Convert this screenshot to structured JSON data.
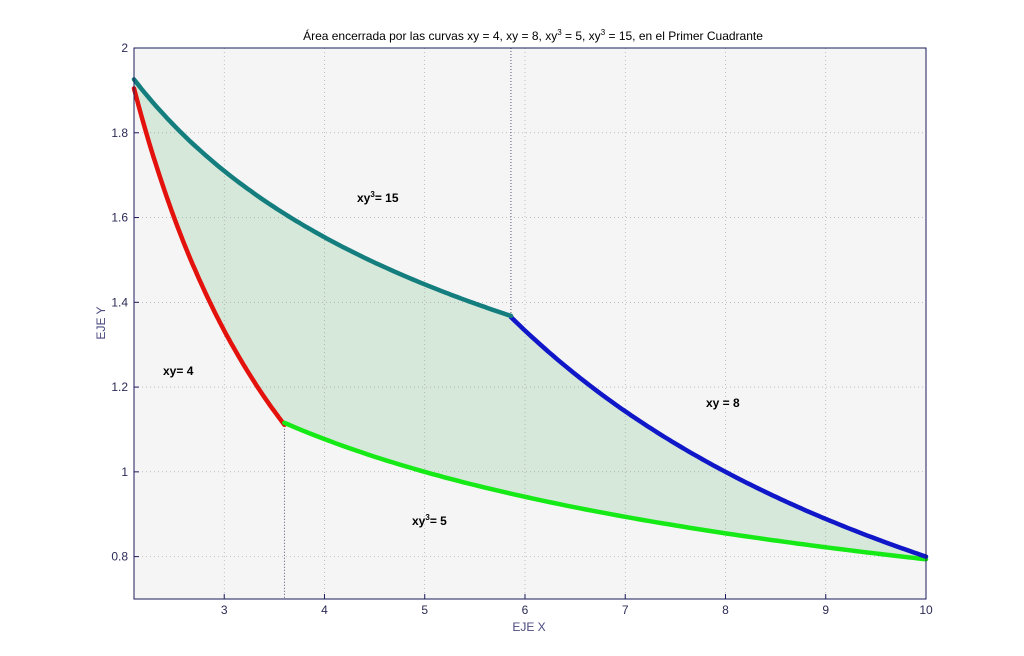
{
  "chart_data": {
    "type": "line",
    "title_parts": {
      "t1": "Área encerrada por las curvas xy = 4, xy = 8, xy",
      "sup1": "3",
      "t2": " = 5, xy",
      "sup2": "3",
      "t3": " = 15, en el Primer Cuadrante"
    },
    "xlabel": "EJE X",
    "ylabel": "EJE Y",
    "xlim": [
      2.1,
      10
    ],
    "ylim": [
      0.7,
      2
    ],
    "xticks": [
      3,
      4,
      5,
      6,
      7,
      8,
      9,
      10
    ],
    "yticks": [
      0.8,
      1,
      1.2,
      1.4,
      1.6,
      1.8,
      2
    ],
    "grid": true,
    "fill_color": "#d5e8d9",
    "series": [
      {
        "key": "xy4",
        "k": 4,
        "power": 1,
        "x_range": [
          2.1,
          3.6
        ],
        "color": "#e3120d"
      },
      {
        "key": "xy3_5",
        "k": 5,
        "power": 3,
        "x_range": [
          3.6,
          10
        ],
        "color": "#16ea16"
      },
      {
        "key": "xy8",
        "k": 8,
        "power": 1,
        "x_range": [
          5.86,
          10
        ],
        "color": "#0f17c8"
      },
      {
        "key": "xy3_15",
        "k": 15,
        "power": 3,
        "x_range": [
          2.1,
          5.86
        ],
        "color": "#147e7e"
      }
    ],
    "annotations": {
      "xy15": {
        "text1": "xy",
        "sup": "3",
        "text2": "= 15"
      },
      "xy4": {
        "text1": "xy= 4"
      },
      "xy8": {
        "text1": "xy = 8"
      },
      "xy5": {
        "text1": "xy",
        "sup": "3",
        "text2": "= 5"
      }
    }
  }
}
